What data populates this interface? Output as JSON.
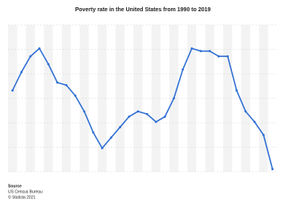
{
  "chart_data": {
    "type": "line",
    "title": "Poverty rate in the United States from 1990 to 2019",
    "values": [
      13.5,
      14.2,
      14.8,
      15.1,
      14.5,
      13.8,
      13.7,
      13.3,
      12.7,
      11.9,
      11.3,
      11.7,
      12.1,
      12.5,
      12.7,
      12.6,
      12.3,
      12.5,
      13.2,
      14.3,
      15.1,
      15.0,
      15.0,
      14.8,
      14.8,
      13.5,
      12.7,
      12.3,
      11.8,
      10.5
    ],
    "color": "#2f6fd4",
    "ylim": [
      10.4,
      16.0
    ],
    "grid": true,
    "source": {
      "label": "Source",
      "org": "US Census Bureau",
      "credit": "© Statista 2021"
    }
  }
}
